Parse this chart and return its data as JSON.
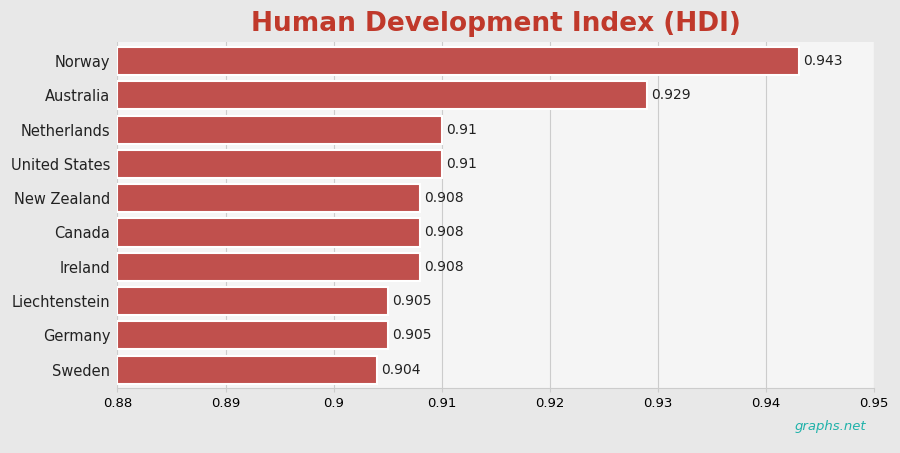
{
  "title": "Human Development Index (HDI)",
  "title_color": "#c0392b",
  "title_fontsize": 19,
  "categories": [
    "Sweden",
    "Germany",
    "Liechtenstein",
    "Ireland",
    "Canada",
    "New Zealand",
    "United States",
    "Netherlands",
    "Australia",
    "Norway"
  ],
  "values": [
    0.904,
    0.905,
    0.905,
    0.908,
    0.908,
    0.908,
    0.91,
    0.91,
    0.929,
    0.943
  ],
  "labels": [
    "0.904",
    "0.905",
    "0.905",
    "0.908",
    "0.908",
    "0.908",
    "0.91",
    "0.91",
    "0.929",
    "0.943"
  ],
  "bar_color": "#c0504d",
  "background_color": "#e8e8e8",
  "plot_bg_color": "#f5f5f5",
  "xlim": [
    0.88,
    0.95
  ],
  "xticks": [
    0.88,
    0.89,
    0.9,
    0.91,
    0.92,
    0.93,
    0.94,
    0.95
  ],
  "grid_color": "#cccccc",
  "label_fontsize": 10.5,
  "tick_fontsize": 9.5,
  "value_label_fontsize": 10,
  "watermark": "graphs.net",
  "watermark_color": "#20b2aa",
  "bar_height": 0.82
}
